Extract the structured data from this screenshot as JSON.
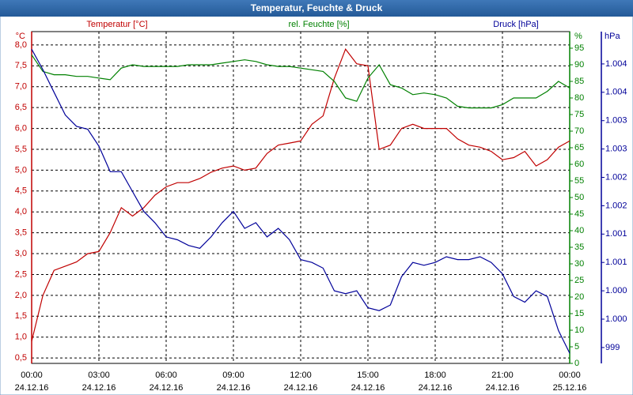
{
  "chart_data": {
    "type": "line",
    "title": "Temperatur, Feuchte & Druck",
    "y_label": "°C",
    "y2_label": "%",
    "y3_label": "hPa",
    "x": [
      0,
      0.5,
      1,
      1.5,
      2,
      2.5,
      3,
      3.5,
      4,
      4.5,
      5,
      5.5,
      6,
      6.5,
      7,
      7.5,
      8,
      8.5,
      9,
      9.5,
      10,
      10.5,
      11,
      11.5,
      12,
      12.5,
      13,
      13.5,
      14,
      14.5,
      15,
      15.5,
      16,
      16.5,
      17,
      17.5,
      18,
      18.5,
      19,
      19.5,
      20,
      20.5,
      21,
      21.5,
      22,
      22.5,
      23,
      23.5,
      24
    ],
    "xlim": [
      0,
      24
    ],
    "xticks": [
      {
        "value": 0,
        "label": "00:00"
      },
      {
        "value": 3,
        "label": "03:00"
      },
      {
        "value": 6,
        "label": "06:00"
      },
      {
        "value": 9,
        "label": "09:00"
      },
      {
        "value": 12,
        "label": "12:00"
      },
      {
        "value": 15,
        "label": "15:00"
      },
      {
        "value": 18,
        "label": "18:00"
      },
      {
        "value": 21,
        "label": "21:00"
      },
      {
        "value": 24,
        "label": "00:00"
      }
    ],
    "xtick_dates": [
      "24.12.16",
      "24.12.16",
      "24.12.16",
      "24.12.16",
      "24.12.16",
      "24.12.16",
      "24.12.16",
      "24.12.16",
      "25.12.16"
    ],
    "ylim": [
      0.37,
      8.32
    ],
    "yticks": [
      {
        "value": 0.5,
        "label": "0,5"
      },
      {
        "value": 1,
        "label": "1,0"
      },
      {
        "value": 1.5,
        "label": "1,5"
      },
      {
        "value": 2,
        "label": "2,0"
      },
      {
        "value": 2.5,
        "label": "2,5"
      },
      {
        "value": 3,
        "label": "3,0"
      },
      {
        "value": 3.5,
        "label": "3,5"
      },
      {
        "value": 4,
        "label": "4,0"
      },
      {
        "value": 4.5,
        "label": "4,5"
      },
      {
        "value": 5,
        "label": "5,0"
      },
      {
        "value": 5.5,
        "label": "5,5"
      },
      {
        "value": 6,
        "label": "6,0"
      },
      {
        "value": 6.5,
        "label": "6,5"
      },
      {
        "value": 7,
        "label": "7,0"
      },
      {
        "value": 7.5,
        "label": "7,5"
      },
      {
        "value": 8,
        "label": "8,0"
      }
    ],
    "y2lim": [
      0,
      100
    ],
    "y2ticks": [
      0,
      5,
      10,
      15,
      20,
      25,
      30,
      35,
      40,
      45,
      50,
      55,
      60,
      65,
      70,
      75,
      80,
      85,
      90,
      95
    ],
    "y3lim": [
      998.72,
      1004.57
    ],
    "y3ticks": [
      999,
      {
        "value": 999.5,
        "label": "1.000"
      },
      {
        "value": 1000,
        "label": "1.000"
      },
      {
        "value": 1000.5,
        "label": "1.001"
      },
      {
        "value": 1001,
        "label": "1.001"
      },
      {
        "value": 1001.5,
        "label": "1.002"
      },
      {
        "value": 1002,
        "label": "1.002"
      },
      {
        "value": 1002.5,
        "label": "1.003"
      },
      {
        "value": 1003,
        "label": "1.003"
      },
      {
        "value": 1003.5,
        "label": "1.004"
      },
      {
        "value": 1004,
        "label": "1.004"
      }
    ],
    "grid": true,
    "series": [
      {
        "name": "Temperatur [°C]",
        "color": "#c00000",
        "axis": "y",
        "values": [
          0.9,
          2.0,
          2.6,
          2.7,
          2.8,
          3.0,
          3.05,
          3.5,
          4.1,
          3.9,
          4.1,
          4.4,
          4.6,
          4.7,
          4.7,
          4.8,
          4.95,
          5.05,
          5.1,
          5.0,
          5.05,
          5.4,
          5.6,
          5.65,
          5.7,
          6.1,
          6.3,
          7.2,
          7.9,
          7.55,
          7.5,
          5.5,
          5.6,
          6.0,
          6.1,
          6.0,
          6.0,
          6.0,
          5.75,
          5.6,
          5.55,
          5.45,
          5.25,
          5.3,
          5.45,
          5.1,
          5.25,
          5.55,
          5.7
        ]
      },
      {
        "name": "rel. Feuchte [%]",
        "color": "#008000",
        "axis": "y2",
        "values": [
          93,
          88,
          87,
          87,
          86.5,
          86.5,
          86,
          85.5,
          89,
          90,
          89.5,
          89.5,
          89.5,
          89.5,
          90,
          90,
          90,
          90.5,
          91,
          91.5,
          91,
          90,
          89.5,
          89.5,
          89,
          88.5,
          88,
          85,
          80,
          79,
          86,
          90,
          84,
          83,
          81,
          81.5,
          81,
          80,
          77.5,
          77,
          77,
          77,
          78,
          80,
          80,
          80,
          82,
          85,
          83
        ]
      },
      {
        "name": "Druck [hPa]",
        "color": "#000099",
        "axis": "y3",
        "values": [
          1004.26,
          1003.9,
          1003.5,
          1003.1,
          1002.9,
          1002.85,
          1002.55,
          1002.1,
          1002.1,
          1001.75,
          1001.4,
          1001.2,
          1000.95,
          1000.9,
          1000.8,
          1000.75,
          1000.95,
          1001.2,
          1001.4,
          1001.1,
          1001.2,
          1000.95,
          1001.1,
          1000.9,
          1000.55,
          1000.5,
          1000.4,
          1000.0,
          999.95,
          1000.0,
          999.7,
          999.65,
          999.75,
          1000.25,
          1000.5,
          1000.45,
          1000.5,
          1000.6,
          1000.55,
          1000.55,
          1000.6,
          1000.5,
          1000.3,
          999.9,
          999.8,
          1000.0,
          999.9,
          999.3,
          998.9
        ]
      }
    ]
  }
}
